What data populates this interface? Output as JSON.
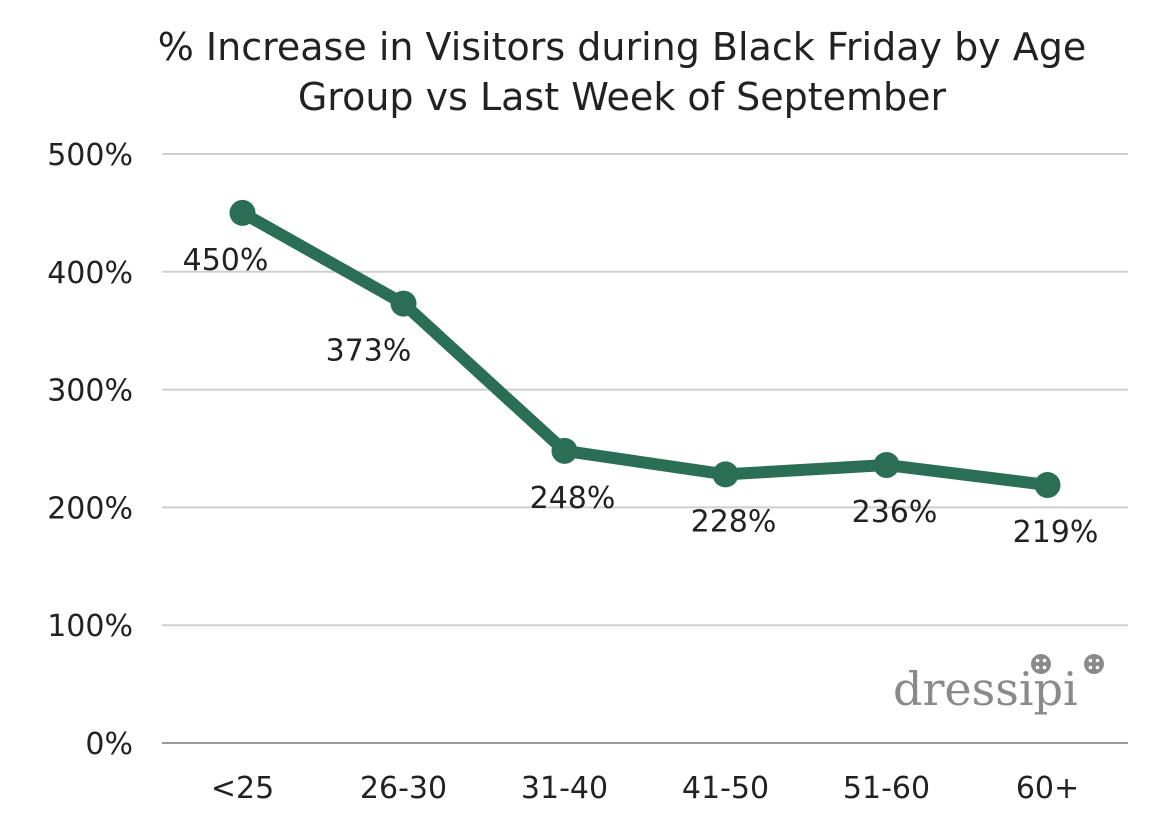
{
  "chart_data": {
    "type": "line",
    "title_lines": [
      "% Increase in Visitors during Black Friday by Age",
      "Group vs Last Week of September"
    ],
    "categories": [
      "<25",
      "26-30",
      "31-40",
      "41-50",
      "51-60",
      "60+"
    ],
    "series": [
      {
        "values": [
          450,
          373,
          248,
          228,
          236,
          219
        ]
      }
    ],
    "data_labels": [
      "450%",
      "373%",
      "248%",
      "228%",
      "236%",
      "219%"
    ],
    "y_ticks": [
      0,
      100,
      200,
      300,
      400,
      500
    ],
    "y_tick_labels": [
      "0%",
      "100%",
      "200%",
      "300%",
      "400%",
      "500%"
    ],
    "ylim": [
      0,
      500
    ],
    "grid": true,
    "legend": "none",
    "line_color": "#2a6e55",
    "grid_color": "#cfcfcf"
  },
  "watermark": {
    "text": "dressipi"
  }
}
